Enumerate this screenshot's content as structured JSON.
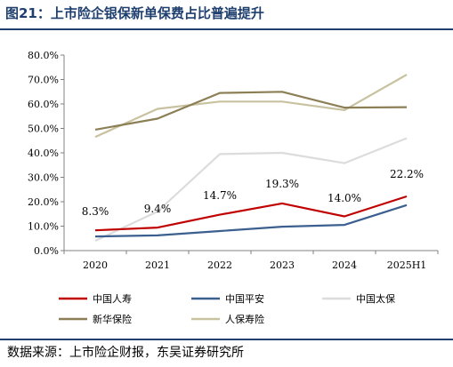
{
  "header": {
    "title": "图21：上市险企银保新单保费占比普遍提升"
  },
  "footer": {
    "source": "数据来源：上市险企财报，东吴证券研究所"
  },
  "chart_data": {
    "type": "line",
    "x": [
      "2020",
      "2021",
      "2022",
      "2023",
      "2024",
      "2025H1"
    ],
    "ylim": [
      0,
      80
    ],
    "yticks": [
      0,
      10,
      20,
      30,
      40,
      50,
      60,
      70,
      80
    ],
    "ytick_labels": [
      "0.0%",
      "10.0%",
      "20.0%",
      "30.0%",
      "40.0%",
      "50.0%",
      "60.0%",
      "70.0%",
      "80.0%"
    ],
    "grid": false,
    "legend_position": "bottom",
    "series": [
      {
        "name": "中国人寿",
        "color": "#c00000",
        "values": [
          8.3,
          9.4,
          14.7,
          19.3,
          14.0,
          22.2
        ],
        "labels": [
          "8.3%",
          "9.4%",
          "14.7%",
          "19.3%",
          "14.0%",
          "22.2%"
        ]
      },
      {
        "name": "中国平安",
        "color": "#3b5f8f",
        "values": [
          5.8,
          6.2,
          8.0,
          9.8,
          10.5,
          18.6
        ]
      },
      {
        "name": "中国太保",
        "color": "#dcdcdc",
        "values": [
          4.0,
          16.0,
          39.5,
          40.0,
          35.8,
          46.0
        ]
      },
      {
        "name": "新华保险",
        "color": "#8c7f55",
        "values": [
          49.5,
          54.0,
          64.5,
          65.0,
          58.5,
          58.7
        ]
      },
      {
        "name": "人保寿险",
        "color": "#c9c2a0",
        "values": [
          46.5,
          58.0,
          61.0,
          61.0,
          57.5,
          72.0
        ]
      }
    ]
  }
}
